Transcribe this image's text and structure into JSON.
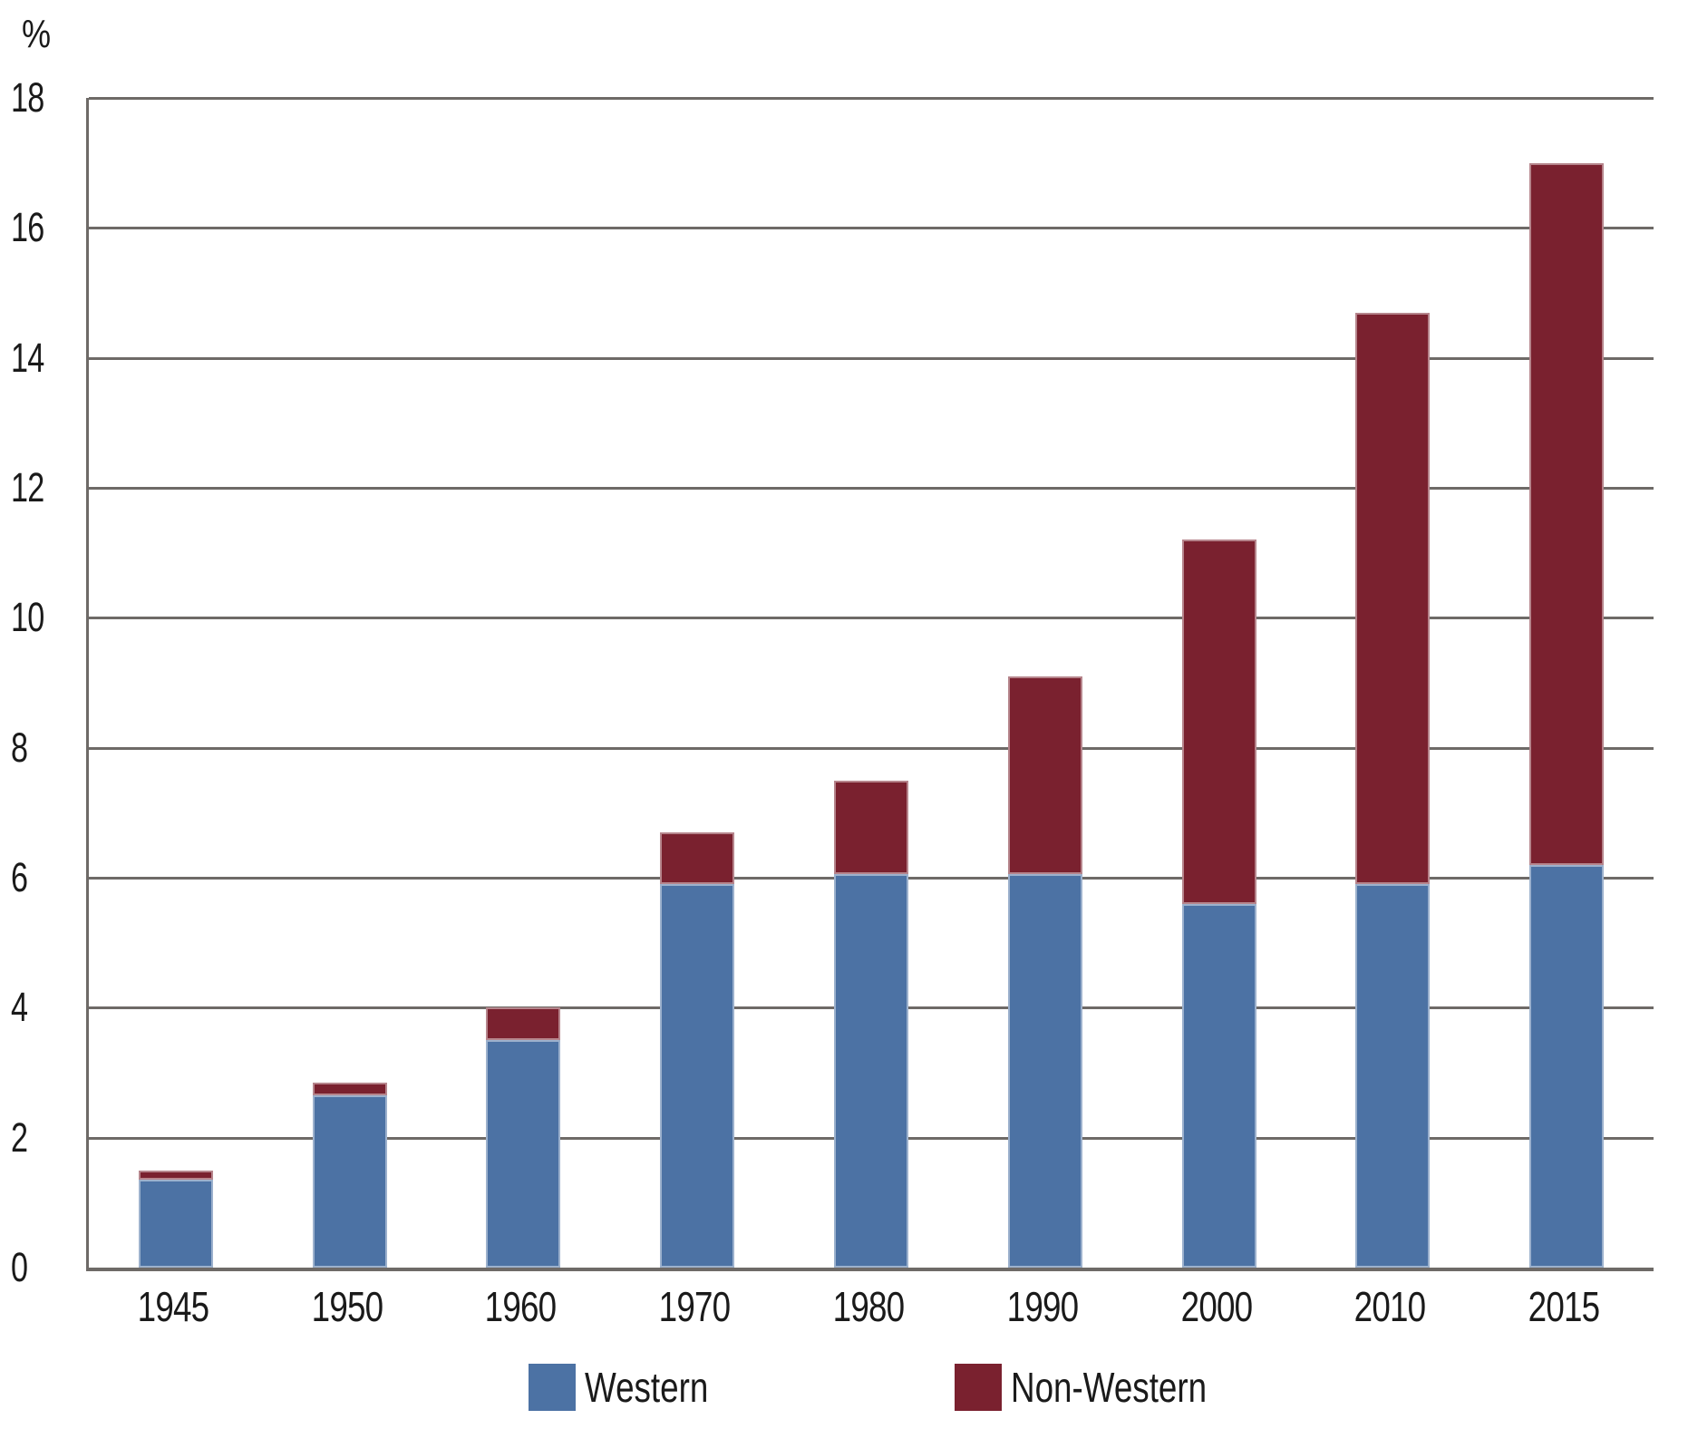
{
  "chart_data": {
    "type": "bar",
    "stacked": true,
    "title": "",
    "xlabel": "",
    "ylabel": "%",
    "categories": [
      "1945",
      "1950",
      "1960",
      "1970",
      "1980",
      "1990",
      "2000",
      "2010",
      "2015"
    ],
    "series": [
      {
        "name": "Western",
        "color": "#4c72a4",
        "values": [
          1.35,
          2.65,
          3.5,
          5.9,
          6.05,
          6.05,
          5.6,
          5.9,
          6.2
        ]
      },
      {
        "name": "Non-Western",
        "color": "#7a212f",
        "values": [
          0.15,
          0.2,
          0.5,
          0.8,
          1.45,
          3.05,
          5.6,
          8.8,
          10.8
        ]
      }
    ],
    "totals": [
      1.5,
      2.85,
      4.0,
      6.7,
      7.5,
      9.1,
      11.2,
      14.7,
      17.0
    ],
    "ylim": [
      0,
      18
    ],
    "ytick_step": 2,
    "yticks": [
      0,
      2,
      4,
      6,
      8,
      10,
      12,
      14,
      16,
      18
    ],
    "grid": true,
    "gridline_color": "#6e6a67",
    "legend_position": "bottom"
  }
}
